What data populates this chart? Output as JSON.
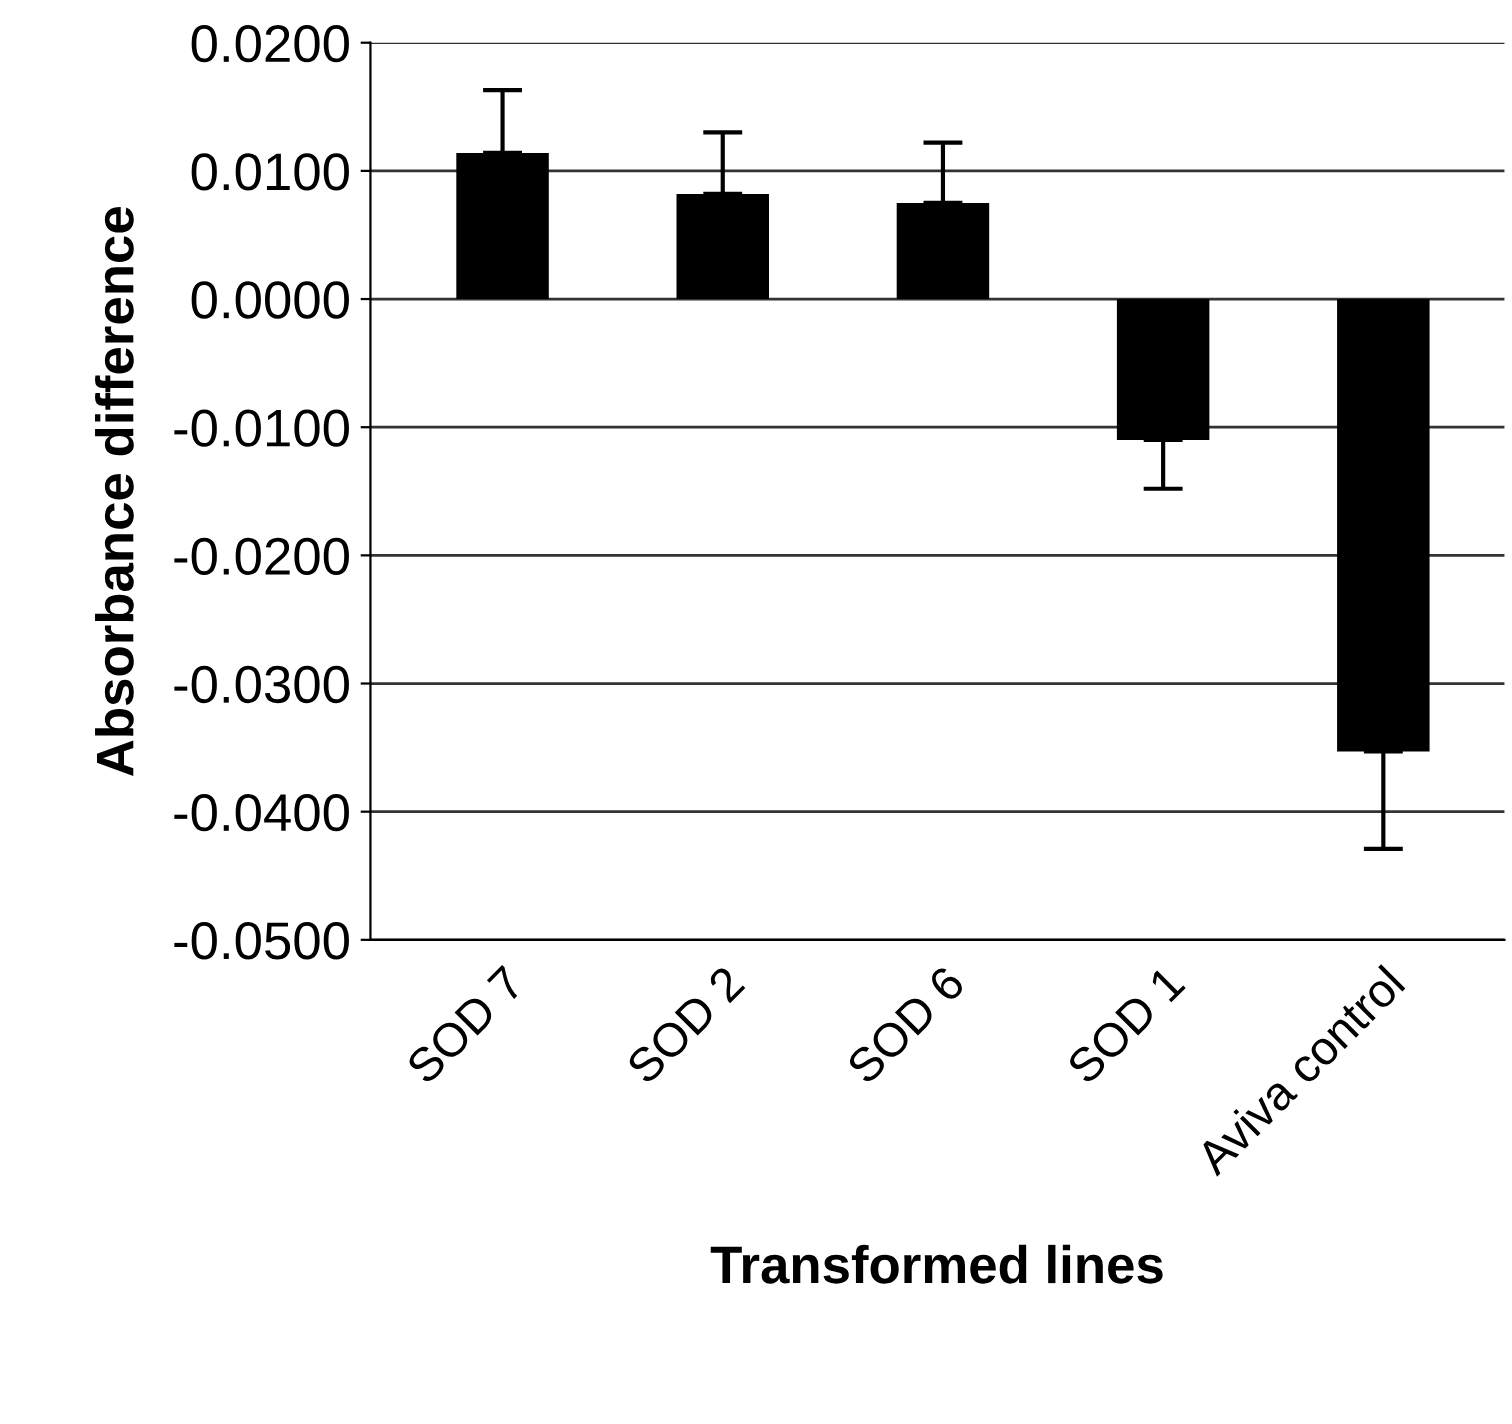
{
  "chart_data": {
    "type": "bar",
    "xlabel": "Transformed lines",
    "ylabel": "Absorbance difference",
    "categories": [
      "SOD 7",
      "SOD 2",
      "SOD 6",
      "SOD 1",
      "Aviva control"
    ],
    "values": [
      0.0114,
      0.0082,
      0.0075,
      -0.011,
      -0.0353
    ],
    "errors": [
      [
        0.0114,
        0.0163
      ],
      [
        0.0082,
        0.013
      ],
      [
        0.0075,
        0.0122
      ],
      [
        -0.0148,
        -0.011
      ],
      [
        -0.0429,
        -0.0353
      ]
    ],
    "color": "#000000",
    "ylim": [
      -0.05,
      0.02
    ],
    "yticks": [
      {
        "value": 0.02,
        "label": "0.0200"
      },
      {
        "value": 0.01,
        "label": "0.0100"
      },
      {
        "value": 0.0,
        "label": "0.0000"
      },
      {
        "value": -0.01,
        "label": "-0.0100"
      },
      {
        "value": -0.02,
        "label": "-0.0200"
      },
      {
        "value": -0.03,
        "label": "-0.0300"
      },
      {
        "value": -0.04,
        "label": "-0.0400"
      },
      {
        "value": -0.05,
        "label": "-0.0500"
      }
    ],
    "grid": "y"
  }
}
